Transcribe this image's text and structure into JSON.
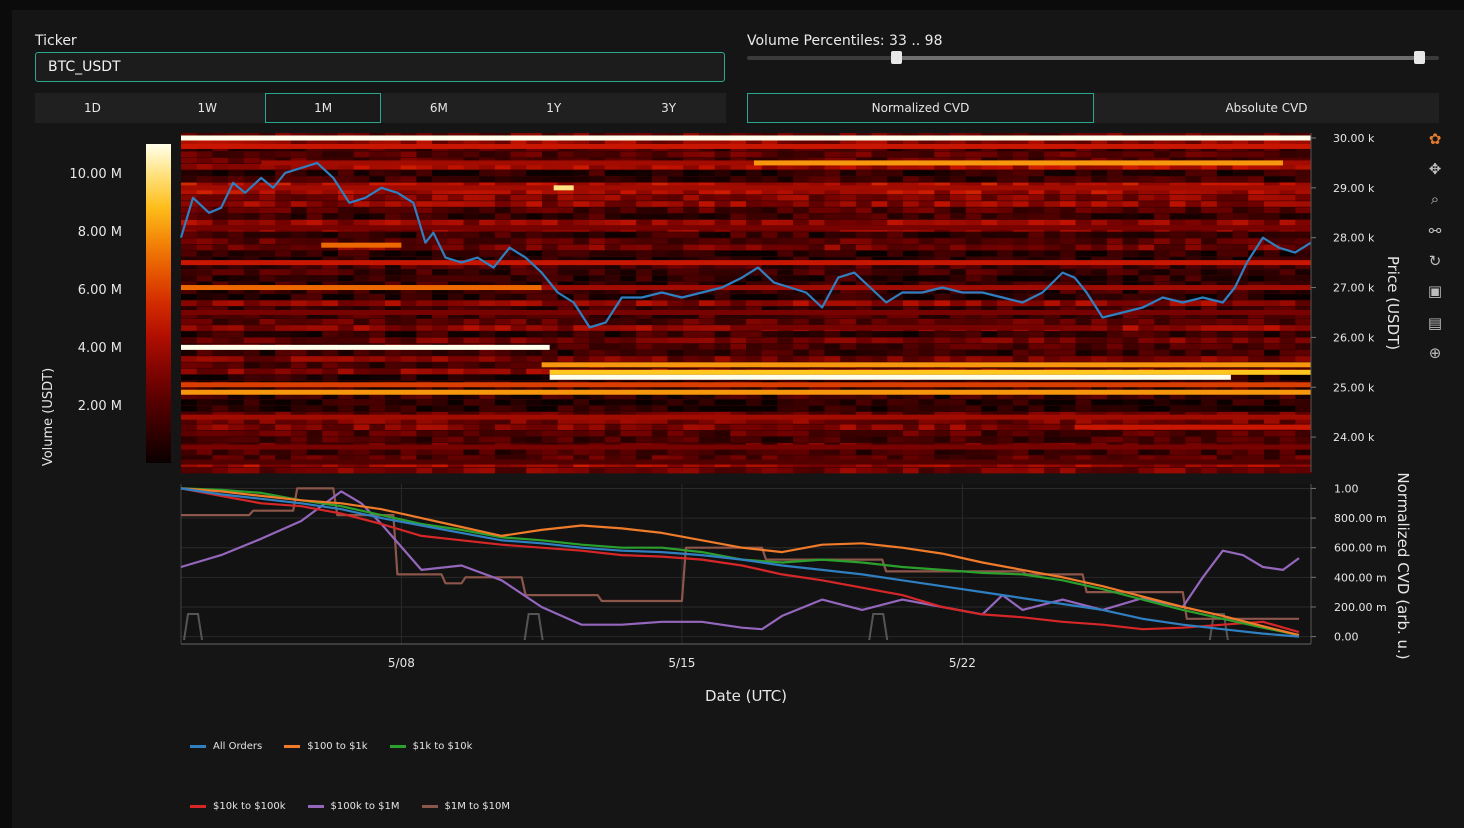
{
  "controls": {
    "ticker_label": "Ticker",
    "ticker_value": "BTC_USDT",
    "range_buttons": [
      "1D",
      "1W",
      "1M",
      "6M",
      "1Y",
      "3Y"
    ],
    "range_active": "1M",
    "percentile_label": "Volume Percentiles: 33 .. 98",
    "percentile_low": 33,
    "percentile_high": 98,
    "cvd_buttons": [
      "Normalized CVD",
      "Absolute CVD"
    ],
    "cvd_active": "Normalized CVD"
  },
  "modebar_icons": [
    "plotly-logo-icon",
    "pan-icon",
    "zoom-icon",
    "spike-lines-icon",
    "reset-icon",
    "save-icon",
    "hover-label-icon",
    "crosshair-icon"
  ],
  "chart_data": [
    {
      "type": "heatmap",
      "colorscale": "hot",
      "colorbar": {
        "title": "Volume (USDT)",
        "ticks": [
          "10.00 M",
          "8.00 M",
          "6.00 M",
          "4.00 M",
          "2.00 M"
        ],
        "tick_values": [
          10,
          8,
          6,
          4,
          2
        ],
        "range": [
          0,
          11
        ]
      },
      "y_axis": {
        "title": "Price (USDT)",
        "ticks": [
          "30.00 k",
          "29.00 k",
          "28.00 k",
          "27.00 k",
          "26.00 k",
          "25.00 k",
          "24.00 k"
        ],
        "tick_values": [
          30000,
          29000,
          28000,
          27000,
          26000,
          25000,
          24000
        ],
        "range": [
          23300,
          30100
        ]
      },
      "x_range_days": [
        1,
        29.2
      ],
      "bands": [
        {
          "price": 30000,
          "from": 1,
          "to": 29.2,
          "level": 11
        },
        {
          "price": 29830,
          "from": 1,
          "to": 29.2,
          "level": 5
        },
        {
          "price": 29500,
          "from": 3,
          "to": 29.2,
          "level": 4
        },
        {
          "price": 29500,
          "from": 15.3,
          "to": 28.5,
          "level": 8
        },
        {
          "price": 29000,
          "from": 1,
          "to": 29.2,
          "level": 4
        },
        {
          "price": 29000,
          "from": 10.3,
          "to": 10.8,
          "level": 10
        },
        {
          "price": 28200,
          "from": 1,
          "to": 29.2,
          "level": 3
        },
        {
          "price": 27850,
          "from": 4.5,
          "to": 6.5,
          "level": 7
        },
        {
          "price": 27500,
          "from": 1,
          "to": 29.2,
          "level": 5
        },
        {
          "price": 27000,
          "from": 1,
          "to": 10,
          "level": 7
        },
        {
          "price": 27000,
          "from": 10,
          "to": 29.2,
          "level": 4
        },
        {
          "price": 26500,
          "from": 1,
          "to": 29.2,
          "level": 3
        },
        {
          "price": 26200,
          "from": 15,
          "to": 23,
          "level": 3
        },
        {
          "price": 25800,
          "from": 1,
          "to": 10.2,
          "level": 11
        },
        {
          "price": 25450,
          "from": 10,
          "to": 29.2,
          "level": 8
        },
        {
          "price": 25300,
          "from": 10.2,
          "to": 29.2,
          "level": 9
        },
        {
          "price": 25200,
          "from": 10.2,
          "to": 27.2,
          "level": 11
        },
        {
          "price": 25050,
          "from": 1,
          "to": 29.2,
          "level": 6
        },
        {
          "price": 24900,
          "from": 1,
          "to": 29.2,
          "level": 8
        },
        {
          "price": 24400,
          "from": 1,
          "to": 29.2,
          "level": 4
        },
        {
          "price": 24200,
          "from": 23.3,
          "to": 29.2,
          "level": 5
        },
        {
          "price": 23800,
          "from": 1,
          "to": 29.2,
          "level": 3
        },
        {
          "price": 23500,
          "from": 1,
          "to": 29.2,
          "level": 2
        }
      ],
      "price_series": {
        "name": "Price",
        "color": "#2f7fc1",
        "x": [
          1.0,
          1.3,
          1.7,
          2.0,
          2.3,
          2.6,
          3.0,
          3.3,
          3.6,
          4.0,
          4.4,
          4.8,
          5.2,
          5.6,
          6.0,
          6.4,
          6.8,
          7.1,
          7.3,
          7.6,
          8.0,
          8.4,
          8.8,
          9.2,
          9.6,
          10.0,
          10.4,
          10.8,
          11.2,
          11.6,
          12.0,
          12.5,
          13.0,
          13.5,
          14.0,
          14.5,
          15.0,
          15.4,
          15.8,
          16.2,
          16.6,
          17.0,
          17.4,
          17.8,
          18.2,
          18.6,
          19.0,
          19.5,
          20.0,
          20.5,
          21.0,
          21.5,
          22.0,
          22.5,
          23.0,
          23.3,
          23.6,
          24.0,
          24.5,
          25.0,
          25.5,
          26.0,
          26.5,
          27.0,
          27.3,
          27.6,
          28.0,
          28.4,
          28.8,
          29.2
        ],
        "y": [
          28000,
          28800,
          28500,
          28600,
          29100,
          28900,
          29200,
          29000,
          29300,
          29400,
          29500,
          29200,
          28700,
          28800,
          29000,
          28900,
          28700,
          27900,
          28100,
          27600,
          27500,
          27600,
          27400,
          27800,
          27600,
          27300,
          26900,
          26700,
          26200,
          26300,
          26800,
          26800,
          26900,
          26800,
          26900,
          27000,
          27200,
          27400,
          27100,
          27000,
          26900,
          26600,
          27200,
          27300,
          27000,
          26700,
          26900,
          26900,
          27000,
          26900,
          26900,
          26800,
          26700,
          26900,
          27300,
          27200,
          26900,
          26400,
          26500,
          26600,
          26800,
          26700,
          26800,
          26700,
          27000,
          27500,
          28000,
          27800,
          27700,
          27900
        ]
      }
    },
    {
      "type": "line",
      "y_axis": {
        "title": "Normalized CVD (arb. u.)",
        "ticks": [
          "1.00",
          "800.00 m",
          "600.00 m",
          "400.00 m",
          "200.00 m",
          "0.00"
        ],
        "tick_values": [
          1,
          0.8,
          0.6,
          0.4,
          0.2,
          0
        ],
        "range": [
          -0.05,
          1.03
        ]
      },
      "x_axis": {
        "title": "Date (UTC)",
        "ticks": [
          "5/08",
          "5/15",
          "5/22"
        ],
        "tick_values": [
          8,
          15,
          22
        ],
        "range": [
          2.5,
          30.7
        ]
      },
      "series": [
        {
          "name": "All Orders",
          "color": "#2f7fc1",
          "x": [
            2.5,
            3.5,
            4.5,
            5.5,
            6.5,
            7.5,
            8.5,
            9.5,
            10.5,
            11.5,
            12.5,
            13.5,
            14.5,
            15.5,
            16.5,
            17.5,
            18.5,
            19.5,
            20.5,
            21.5,
            22.5,
            23.5,
            24.5,
            25.5,
            26.5,
            27.5,
            28.5,
            29.5,
            30.4
          ],
          "y": [
            1.0,
            0.96,
            0.93,
            0.9,
            0.86,
            0.8,
            0.75,
            0.7,
            0.65,
            0.63,
            0.6,
            0.58,
            0.57,
            0.55,
            0.52,
            0.48,
            0.45,
            0.42,
            0.38,
            0.34,
            0.3,
            0.26,
            0.22,
            0.18,
            0.12,
            0.08,
            0.05,
            0.02,
            0.0
          ]
        },
        {
          "name": "$100 to $1k",
          "color": "#f07b2a",
          "x": [
            2.5,
            3.5,
            4.5,
            5.5,
            6.5,
            7.5,
            8.5,
            9.5,
            10.5,
            11.5,
            12.5,
            13.5,
            14.5,
            15.5,
            16.5,
            17.5,
            18.5,
            19.5,
            20.5,
            21.5,
            22.5,
            23.5,
            24.5,
            25.5,
            26.5,
            27.5,
            28.5,
            29.5,
            30.4
          ],
          "y": [
            1.0,
            0.98,
            0.95,
            0.92,
            0.9,
            0.86,
            0.8,
            0.74,
            0.68,
            0.72,
            0.75,
            0.73,
            0.7,
            0.65,
            0.6,
            0.57,
            0.62,
            0.63,
            0.6,
            0.56,
            0.5,
            0.45,
            0.4,
            0.34,
            0.27,
            0.2,
            0.14,
            0.07,
            0.01
          ]
        },
        {
          "name": "$1k to $10k",
          "color": "#2ca02c",
          "x": [
            2.5,
            3.5,
            4.5,
            5.5,
            6.5,
            7.5,
            8.5,
            9.5,
            10.5,
            11.5,
            12.5,
            13.5,
            14.5,
            15.5,
            16.5,
            17.5,
            18.5,
            19.5,
            20.5,
            21.5,
            22.5,
            23.5,
            24.5,
            25.5,
            26.5,
            27.5,
            28.5,
            29.5,
            30.4
          ],
          "y": [
            1.0,
            0.99,
            0.97,
            0.92,
            0.88,
            0.82,
            0.76,
            0.72,
            0.67,
            0.65,
            0.62,
            0.6,
            0.6,
            0.57,
            0.52,
            0.5,
            0.52,
            0.5,
            0.47,
            0.45,
            0.43,
            0.42,
            0.38,
            0.32,
            0.25,
            0.18,
            0.12,
            0.06,
            0.01
          ]
        },
        {
          "name": "$10k to $100k",
          "color": "#d62728",
          "x": [
            2.5,
            3.5,
            4.5,
            5.5,
            6.5,
            7.5,
            8.5,
            9.5,
            10.5,
            11.5,
            12.5,
            13.5,
            14.5,
            15.5,
            16.5,
            17.5,
            18.5,
            19.5,
            20.5,
            21.5,
            22.5,
            23.5,
            24.5,
            25.5,
            26.5,
            27.5,
            28.5,
            29.5,
            30.4
          ],
          "y": [
            1.0,
            0.95,
            0.9,
            0.88,
            0.83,
            0.76,
            0.68,
            0.65,
            0.62,
            0.6,
            0.58,
            0.55,
            0.54,
            0.52,
            0.48,
            0.42,
            0.38,
            0.33,
            0.28,
            0.2,
            0.15,
            0.13,
            0.1,
            0.08,
            0.05,
            0.06,
            0.08,
            0.1,
            0.03
          ]
        },
        {
          "name": "$100k to $1M",
          "color": "#9467bd",
          "x": [
            2.5,
            3.5,
            4.5,
            5.5,
            6.5,
            7.0,
            7.5,
            8.5,
            9.5,
            10.5,
            11.5,
            12.5,
            13.5,
            14.5,
            15.5,
            16.5,
            17.0,
            17.5,
            18.5,
            19.5,
            20.5,
            21.5,
            22.5,
            23.0,
            23.5,
            24.5,
            25.5,
            26.5,
            27.5,
            28.0,
            28.5,
            29.0,
            29.5,
            30.0,
            30.4
          ],
          "y": [
            0.47,
            0.55,
            0.66,
            0.78,
            0.98,
            0.9,
            0.76,
            0.45,
            0.48,
            0.38,
            0.2,
            0.08,
            0.08,
            0.1,
            0.1,
            0.06,
            0.05,
            0.14,
            0.25,
            0.18,
            0.25,
            0.2,
            0.15,
            0.28,
            0.18,
            0.25,
            0.18,
            0.26,
            0.2,
            0.4,
            0.58,
            0.55,
            0.47,
            0.45,
            0.53
          ]
        },
        {
          "name": "$1M to $10M",
          "color": "#8c564b",
          "x": [
            2.5,
            4.2,
            4.3,
            5.3,
            5.4,
            6.3,
            6.4,
            7.8,
            7.9,
            9.0,
            9.1,
            9.5,
            9.6,
            11.0,
            11.1,
            12.9,
            13.0,
            15.0,
            15.1,
            17.0,
            17.1,
            20.0,
            20.1,
            23.5,
            23.6,
            25.0,
            25.1,
            27.5,
            27.6,
            30.4
          ],
          "y": [
            0.82,
            0.82,
            0.85,
            0.85,
            1.0,
            1.0,
            0.82,
            0.82,
            0.42,
            0.42,
            0.36,
            0.36,
            0.4,
            0.4,
            0.28,
            0.28,
            0.24,
            0.24,
            0.6,
            0.6,
            0.52,
            0.52,
            0.44,
            0.44,
            0.42,
            0.42,
            0.3,
            0.3,
            0.12,
            0.12
          ]
        }
      ]
    }
  ]
}
